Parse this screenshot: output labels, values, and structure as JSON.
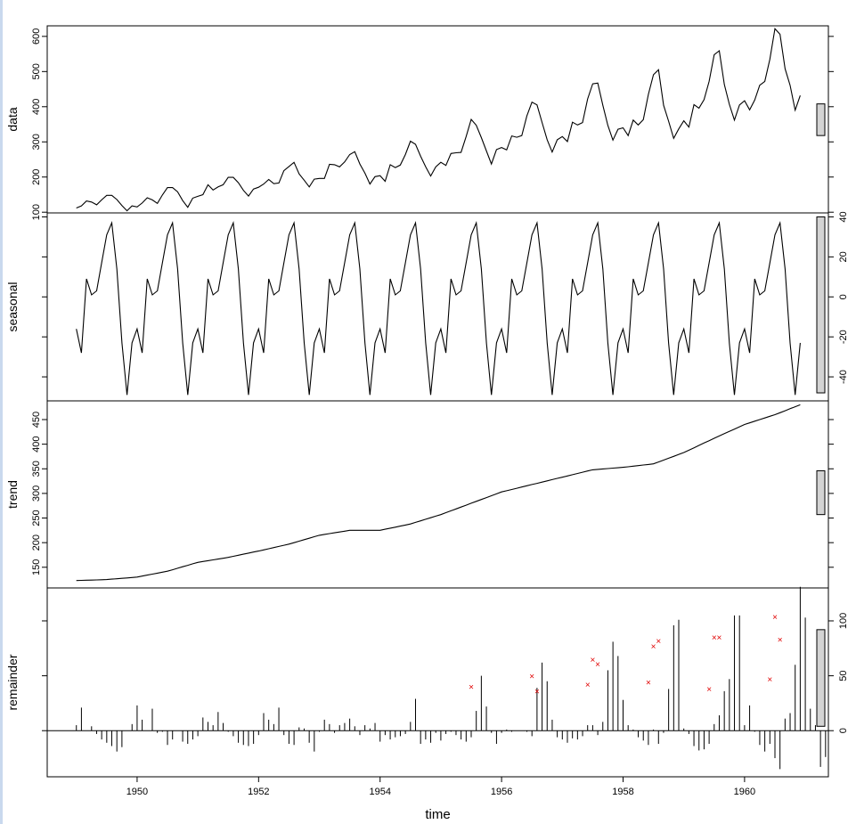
{
  "chart_data": {
    "type": "line",
    "xlabel": "time",
    "x_ticks": [
      1950,
      1952,
      1954,
      1956,
      1958,
      1960
    ],
    "x_start": 1949.0,
    "x_end": 1960.917,
    "frequency": 12,
    "panels": [
      {
        "name": "data",
        "style": "line",
        "yticks": [
          100,
          200,
          300,
          400,
          500,
          600
        ],
        "ylim": [
          98,
          630
        ],
        "values": [
          112,
          118,
          132,
          129,
          121,
          135,
          148,
          148,
          136,
          119,
          104,
          118,
          115,
          126,
          141,
          135,
          125,
          149,
          170,
          170,
          158,
          133,
          114,
          140,
          145,
          150,
          178,
          163,
          172,
          178,
          199,
          199,
          184,
          162,
          146,
          166,
          171,
          180,
          193,
          181,
          183,
          218,
          230,
          242,
          209,
          191,
          172,
          194,
          196,
          196,
          236,
          235,
          229,
          243,
          264,
          272,
          237,
          211,
          180,
          201,
          204,
          188,
          235,
          227,
          234,
          264,
          302,
          293,
          259,
          229,
          203,
          229,
          242,
          233,
          267,
          269,
          270,
          315,
          364,
          347,
          312,
          274,
          237,
          278,
          284,
          277,
          317,
          313,
          318,
          374,
          413,
          405,
          355,
          306,
          271,
          306,
          315,
          301,
          356,
          348,
          355,
          422,
          465,
          467,
          404,
          347,
          305,
          336,
          340,
          318,
          362,
          348,
          363,
          435,
          491,
          505,
          404,
          359,
          310,
          337,
          360,
          342,
          406,
          396,
          420,
          472,
          548,
          559,
          463,
          407,
          362,
          405,
          417,
          391,
          419,
          461,
          472,
          535,
          622,
          606,
          508,
          461,
          390,
          432
        ],
        "range_bar": [
          318,
          408
        ]
      },
      {
        "name": "seasonal",
        "style": "line",
        "yticks": [
          -40,
          -20,
          0,
          20,
          40
        ],
        "ylim": [
          -52,
          42
        ],
        "values": [
          -16,
          -28,
          9,
          1,
          3,
          17,
          31,
          37,
          14,
          -23,
          -49,
          -23,
          -16,
          -28,
          9,
          1,
          3,
          17,
          31,
          37,
          14,
          -23,
          -49,
          -23,
          -16,
          -28,
          9,
          1,
          3,
          17,
          31,
          37,
          14,
          -23,
          -49,
          -23,
          -16,
          -28,
          9,
          1,
          3,
          17,
          31,
          37,
          14,
          -23,
          -49,
          -23,
          -16,
          -28,
          9,
          1,
          3,
          17,
          31,
          37,
          14,
          -23,
          -49,
          -23,
          -16,
          -28,
          9,
          1,
          3,
          17,
          31,
          37,
          14,
          -23,
          -49,
          -23,
          -16,
          -28,
          9,
          1,
          3,
          17,
          31,
          37,
          14,
          -23,
          -49,
          -23,
          -16,
          -28,
          9,
          1,
          3,
          17,
          31,
          37,
          14,
          -23,
          -49,
          -23,
          -16,
          -28,
          9,
          1,
          3,
          17,
          31,
          37,
          14,
          -23,
          -49,
          -23,
          -16,
          -28,
          9,
          1,
          3,
          17,
          31,
          37,
          14,
          -23,
          -49,
          -23,
          -16,
          -28,
          9,
          1,
          3,
          17,
          31,
          37,
          14,
          -23,
          -49,
          -23,
          -16,
          -28,
          9,
          1,
          3,
          17,
          31,
          37,
          14,
          -23,
          -49,
          -23
        ],
        "range_bar": [
          -48,
          40
        ]
      },
      {
        "name": "trend",
        "style": "line",
        "yticks": [
          150,
          200,
          250,
          300,
          350,
          400,
          450
        ],
        "ylim": [
          108,
          488
        ],
        "knots_x": [
          1949.0,
          1949.5,
          1950.0,
          1950.5,
          1951.0,
          1951.5,
          1952.0,
          1952.5,
          1953.0,
          1953.5,
          1954.0,
          1954.5,
          1955.0,
          1955.5,
          1956.0,
          1956.5,
          1957.0,
          1957.5,
          1958.0,
          1958.5,
          1959.0,
          1959.5,
          1960.0,
          1960.5,
          1960.917
        ],
        "knots_y": [
          123,
          125,
          130,
          142,
          160,
          170,
          183,
          197,
          215,
          225,
          225,
          238,
          257,
          280,
          303,
          318,
          333,
          348,
          353,
          360,
          383,
          412,
          440,
          460,
          480
        ],
        "range_bar": [
          257,
          346
        ]
      },
      {
        "name": "remainder",
        "style": "spikes",
        "yticks": [
          0,
          50,
          100
        ],
        "ylim": [
          -42,
          130
        ],
        "values": [
          5,
          21,
          0,
          4,
          -3,
          -8,
          -11,
          -14,
          -19,
          -15,
          0,
          6,
          23,
          10,
          0,
          20,
          -2,
          -1,
          -13,
          -8,
          0,
          -10,
          -12,
          -8,
          -5,
          12,
          8,
          5,
          17,
          7,
          -1,
          -5,
          -11,
          -13,
          -14,
          -12,
          -4,
          16,
          10,
          6,
          21,
          -4,
          -12,
          -13,
          3,
          2,
          -11,
          -19,
          -1,
          10,
          6,
          -2,
          5,
          7,
          11,
          4,
          -4,
          5,
          2,
          7,
          -10,
          -4,
          -8,
          -6,
          -5,
          -3,
          8,
          29,
          -12,
          -8,
          -11,
          -2,
          -9,
          -3,
          -1,
          -4,
          -8,
          -10,
          -6,
          18,
          50,
          22,
          -2,
          -12,
          -2,
          1,
          -1,
          0,
          0,
          -1,
          -5,
          39,
          62,
          45,
          10,
          -6,
          -8,
          -11,
          -7,
          -8,
          -5,
          5,
          5,
          -4,
          8,
          55,
          81,
          68,
          28,
          5,
          1,
          -6,
          -9,
          -13,
          1,
          -12,
          -2,
          38,
          96,
          101,
          2,
          -3,
          -14,
          -18,
          -17,
          -12,
          6,
          14,
          36,
          47,
          105,
          105,
          5,
          23,
          -1,
          -13,
          -19,
          -12,
          -25,
          -35,
          11,
          16,
          60,
          131,
          103,
          20,
          5,
          -33,
          -24
        ],
        "range_bar": [
          4,
          92
        ],
        "flagged": [
          [
            1955.5,
            39
          ],
          [
            1956.5,
            49
          ],
          [
            1956.583,
            35
          ],
          [
            1957.417,
            41
          ],
          [
            1957.5,
            64
          ],
          [
            1957.583,
            60
          ],
          [
            1958.417,
            43
          ],
          [
            1958.5,
            76
          ],
          [
            1958.583,
            81
          ],
          [
            1959.417,
            37
          ],
          [
            1959.5,
            84
          ],
          [
            1959.583,
            84
          ],
          [
            1960.417,
            46
          ],
          [
            1960.5,
            103
          ],
          [
            1960.583,
            82
          ]
        ]
      }
    ],
    "colors": {
      "line": "#000000",
      "range_bar": "#d3d3d3",
      "flagged_marker": "#e00000"
    },
    "grid": false,
    "legend": "none"
  }
}
